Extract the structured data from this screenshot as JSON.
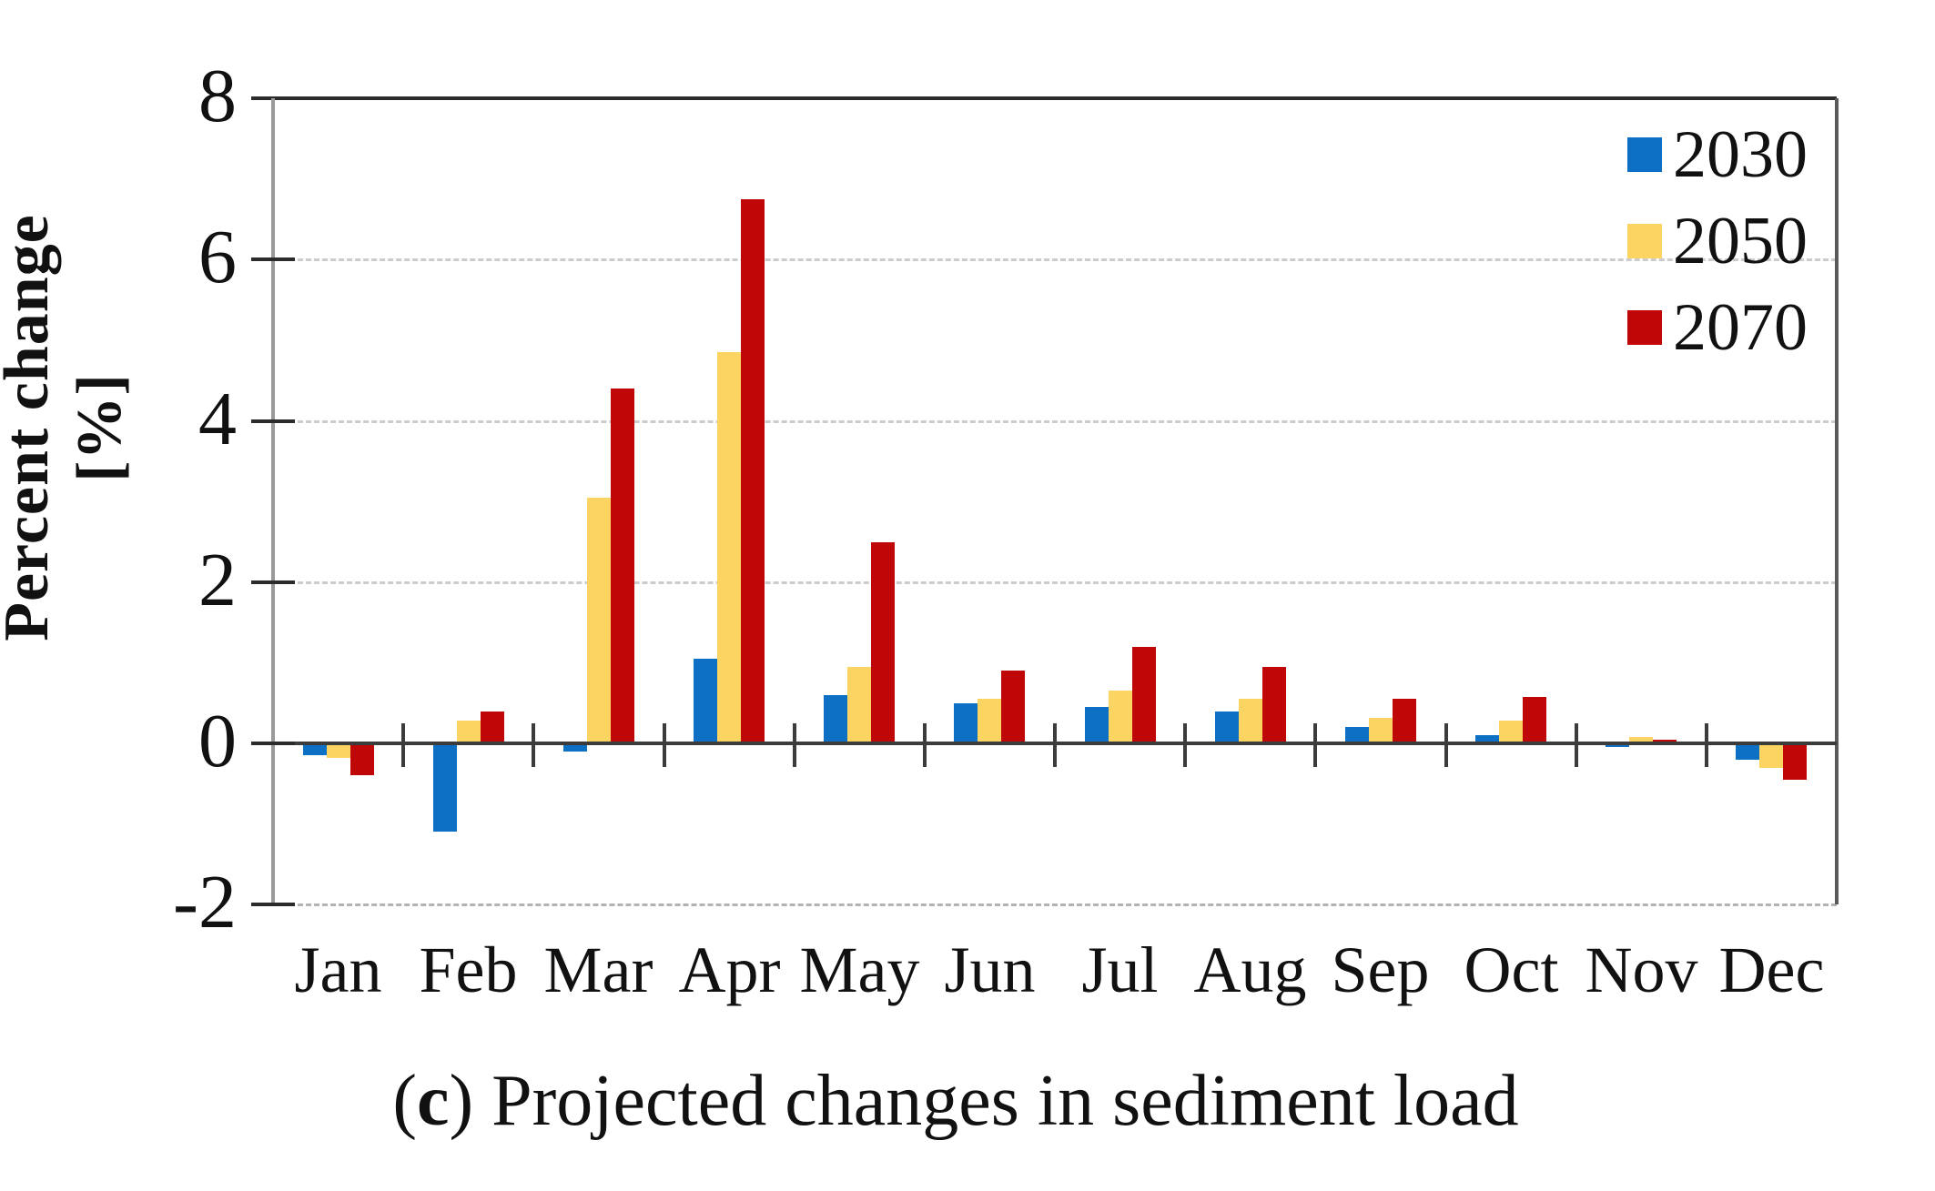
{
  "figure": {
    "caption_open": "(",
    "caption_letter": "c",
    "caption_rest": ") Projected changes in sediment load"
  },
  "chart_data": {
    "type": "bar",
    "title": "",
    "xlabel": "",
    "ylabel": "Percent change [%]",
    "ylim": [
      -2,
      8
    ],
    "yticks": [
      8,
      6,
      4,
      2,
      0,
      -2
    ],
    "gridline_values": [
      6,
      4,
      2,
      -2
    ],
    "grid": "horizontal-dashed",
    "legend_position": "inside-top-right",
    "categories": [
      "Jan",
      "Feb",
      "Mar",
      "Apr",
      "May",
      "Jun",
      "Jul",
      "Aug",
      "Sep",
      "Oct",
      "Nov",
      "Dec"
    ],
    "series": [
      {
        "name": "2030",
        "color": "#0D70C4",
        "values": [
          -0.15,
          -1.1,
          -0.1,
          1.05,
          0.6,
          0.5,
          0.45,
          0.4,
          0.2,
          0.1,
          -0.05,
          -0.2
        ]
      },
      {
        "name": "2050",
        "color": "#FCD462",
        "values": [
          -0.18,
          0.28,
          3.05,
          4.85,
          0.95,
          0.55,
          0.65,
          0.55,
          0.32,
          0.28,
          0.08,
          -0.3
        ]
      },
      {
        "name": "2070",
        "color": "#C00707",
        "values": [
          -0.4,
          0.4,
          4.4,
          6.75,
          2.5,
          0.9,
          1.2,
          0.95,
          0.55,
          0.58,
          0.05,
          -0.45
        ]
      }
    ]
  }
}
